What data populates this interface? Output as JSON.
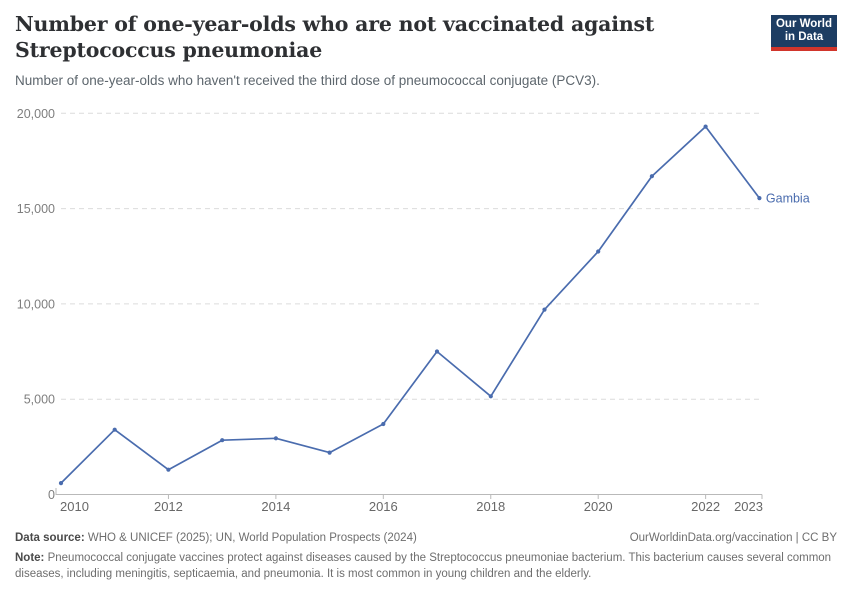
{
  "header": {
    "title_line1": "Number of one-year-olds who are not vaccinated against",
    "title_line2": "Streptococcus pneumoniae",
    "subtitle": "Number of one-year-olds who haven't received the third dose of pneumococcal conjugate (PCV3).",
    "logo": {
      "line1": "Our World",
      "line2": "in Data"
    }
  },
  "chart_data": {
    "type": "line",
    "title": "Number of one-year-olds who are not vaccinated against Streptococcus pneumoniae",
    "subtitle": "Number of one-year-olds who haven't received the third dose of pneumococcal conjugate (PCV3).",
    "x": [
      2010,
      2011,
      2012,
      2013,
      2014,
      2015,
      2016,
      2017,
      2018,
      2019,
      2020,
      2021,
      2022,
      2023
    ],
    "series": [
      {
        "name": "Gambia",
        "values": [
          600,
          3400,
          1300,
          2850,
          2950,
          2200,
          3700,
          7500,
          5150,
          9700,
          12750,
          16700,
          19300,
          15550
        ]
      }
    ],
    "ylim": [
      0,
      20000
    ],
    "xlim": [
      2010,
      2023
    ],
    "yticks": [
      {
        "value": 0,
        "label": "0"
      },
      {
        "value": 5000,
        "label": "5,000"
      },
      {
        "value": 10000,
        "label": "10,000"
      },
      {
        "value": 15000,
        "label": "15,000"
      },
      {
        "value": 20000,
        "label": "20,000"
      }
    ],
    "xticks": [
      {
        "value": 2010,
        "label": "2010"
      },
      {
        "value": 2012,
        "label": "2012"
      },
      {
        "value": 2014,
        "label": "2014"
      },
      {
        "value": 2016,
        "label": "2016"
      },
      {
        "value": 2018,
        "label": "2018"
      },
      {
        "value": 2020,
        "label": "2020"
      },
      {
        "value": 2022,
        "label": "2022"
      },
      {
        "value": 2023,
        "label": "2023"
      }
    ],
    "grid": "horizontal-dashed",
    "legend_position": "end-of-line-label",
    "color": "#4a6cae"
  },
  "footer": {
    "datasource_label": "Data source:",
    "datasource_text": " WHO & UNICEF (2025); UN, World Population Prospects (2024)",
    "rights": "OurWorldinData.org/vaccination | CC BY",
    "note_label": "Note:",
    "note_text": " Pneumococcal conjugate vaccines protect against diseases caused by the Streptococcus pneumoniae bacterium. This bacterium causes several common diseases, including meningitis, septicaemia, and pneumonia. It is most common in young children and the elderly."
  },
  "colors": {
    "accent_line": "#4a6cae",
    "logo_background": "#1d3d63",
    "logo_underline": "#d1352b",
    "gridline": "#dcdcdc",
    "axis": "#b9b9b9"
  }
}
